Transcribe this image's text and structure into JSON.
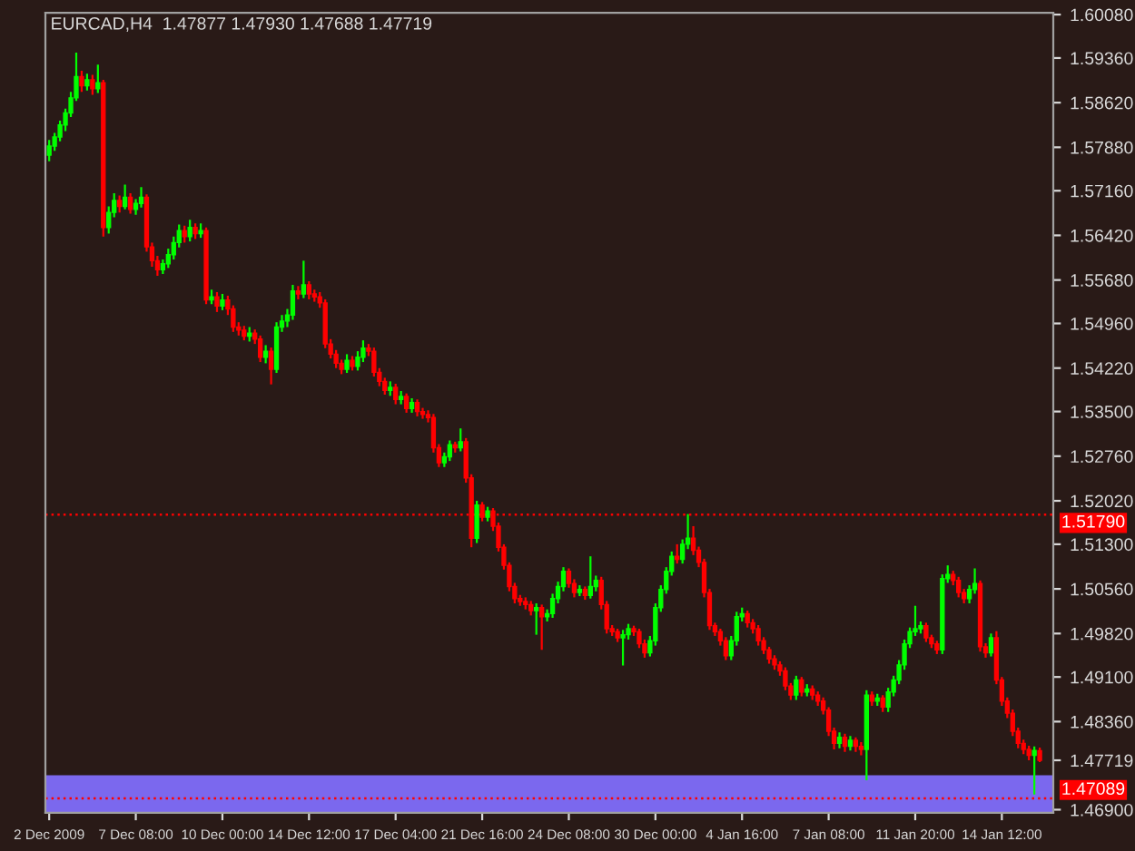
{
  "chart_data": {
    "type": "candlestick",
    "title": "EURCAD,H4  1.47877 1.47930 1.47688 1.47719",
    "categories": [
      "2 Dec 2009",
      null,
      null,
      null,
      null,
      null,
      null,
      null,
      null,
      null,
      null,
      null,
      null,
      null,
      null,
      null,
      "7 Dec 08:00",
      null,
      null,
      null,
      null,
      null,
      null,
      null,
      null,
      null,
      null,
      null,
      null,
      null,
      null,
      null,
      "10 Dec 00:00",
      null,
      null,
      null,
      null,
      null,
      null,
      null,
      null,
      null,
      null,
      null,
      null,
      null,
      null,
      null,
      "14 Dec 12:00",
      null,
      null,
      null,
      null,
      null,
      null,
      null,
      null,
      null,
      null,
      null,
      null,
      null,
      null,
      null,
      "17 Dec 04:00",
      null,
      null,
      null,
      null,
      null,
      null,
      null,
      null,
      null,
      null,
      null,
      null,
      null,
      null,
      null,
      "21 Dec 16:00",
      null,
      null,
      null,
      null,
      null,
      null,
      null,
      null,
      null,
      null,
      null,
      null,
      null,
      null,
      null,
      "24 Dec 08:00",
      null,
      null,
      null,
      null,
      null,
      null,
      null,
      null,
      null,
      null,
      null,
      null,
      null,
      null,
      null,
      "30 Dec 00:00",
      null,
      null,
      null,
      null,
      null,
      null,
      null,
      null,
      null,
      null,
      null,
      null,
      null,
      null,
      null,
      "4 Jan 16:00",
      null,
      null,
      null,
      null,
      null,
      null,
      null,
      null,
      null,
      null,
      null,
      null,
      null,
      null,
      null,
      "7 Jan 08:00",
      null,
      null,
      null,
      null,
      null,
      null,
      null,
      null,
      null,
      null,
      null,
      null,
      null,
      null,
      null,
      "11 Jan 20:00",
      null,
      null,
      null,
      null,
      null,
      null,
      null,
      null,
      null,
      null,
      null,
      null,
      null,
      null,
      null,
      "14 Jan 12:00",
      null,
      null,
      null,
      null,
      null,
      null,
      null
    ],
    "colors": [
      "#00ff00",
      "#00ff00",
      "#00ff00",
      "#00ff00",
      "#00ff00",
      "#00ff00",
      "#ff0000",
      "#00ff00",
      "#ff0000",
      "#00ff00",
      "#ff0000",
      "#00ff00",
      "#00ff00",
      "#ff0000",
      "#00ff00",
      "#ff0000",
      "#00ff00",
      "#00ff00",
      "#ff0000",
      "#ff0000",
      "#ff0000",
      "#00ff00",
      "#00ff00",
      "#00ff00",
      "#00ff00",
      "#ff0000",
      "#00ff00",
      "#ff0000",
      "#00ff00",
      "#ff0000",
      "#00ff00",
      "#ff0000",
      "#00ff00",
      "#ff0000",
      "#ff0000",
      "#ff0000",
      "#ff0000",
      "#00ff00",
      "#ff0000",
      "#ff0000",
      "#00ff00",
      "#ff0000",
      "#00ff00",
      "#00ff00",
      "#00ff00",
      "#00ff00",
      "#ff0000",
      "#00ff00",
      "#ff0000",
      "#ff0000",
      "#ff0000",
      "#ff0000",
      "#ff0000",
      "#ff0000",
      "#ff0000",
      "#00ff00",
      "#ff0000",
      "#00ff00",
      "#00ff00",
      "#ff0000",
      "#ff0000",
      "#ff0000",
      "#ff0000",
      "#00ff00",
      "#ff0000",
      "#00ff00",
      "#ff0000",
      "#00ff00",
      "#ff0000",
      "#ff0000",
      "#ff0000",
      "#ff0000",
      "#ff0000",
      "#00ff00",
      "#00ff00",
      "#ff0000",
      "#00ff00",
      "#ff0000",
      "#ff0000",
      "#00ff00",
      "#ff0000",
      "#00ff00",
      "#ff0000",
      "#ff0000",
      "#ff0000",
      "#ff0000",
      "#ff0000",
      "#ff0000",
      "#ff0000",
      "#ff0000",
      "#00ff00",
      "#ff0000",
      "#00ff00",
      "#00ff00",
      "#00ff00",
      "#00ff00",
      "#ff0000",
      "#ff0000",
      "#00ff00",
      "#ff0000",
      "#00ff00",
      "#00ff00",
      "#ff0000",
      "#ff0000",
      "#ff0000",
      "#ff0000",
      "#00ff00",
      "#00ff00",
      "#ff0000",
      "#ff0000",
      "#ff0000",
      "#00ff00",
      "#00ff00",
      "#00ff00",
      "#00ff00",
      "#00ff00",
      "#ff0000",
      "#00ff00",
      "#00ff00",
      "#ff0000",
      "#ff0000",
      "#ff0000",
      "#ff0000",
      "#ff0000",
      "#ff0000",
      "#ff0000",
      "#00ff00",
      "#00ff00",
      "#00ff00",
      "#ff0000",
      "#ff0000",
      "#ff0000",
      "#ff0000",
      "#ff0000",
      "#ff0000",
      "#ff0000",
      "#ff0000",
      "#ff0000",
      "#00ff00",
      "#ff0000",
      "#00ff00",
      "#ff0000",
      "#ff0000",
      "#ff0000",
      "#ff0000",
      "#ff0000",
      "#00ff00",
      "#ff0000",
      "#00ff00",
      "#ff0000",
      "#ff0000",
      "#00ff00",
      "#ff0000",
      "#00ff00",
      "#ff0000",
      "#00ff00",
      "#00ff00",
      "#00ff00",
      "#00ff00",
      "#00ff00",
      "#00ff00",
      "#00ff00",
      "#ff0000",
      "#ff0000",
      "#ff0000",
      "#00ff00",
      "#00ff00",
      "#ff0000",
      "#ff0000",
      "#ff0000",
      "#00ff00",
      "#00ff00",
      "#ff0000",
      "#ff0000",
      "#00ff00",
      "#ff0000",
      "#ff0000",
      "#ff0000",
      "#ff0000",
      "#ff0000",
      "#ff0000",
      "#ff0000",
      "#00ff00",
      "#ff0000"
    ],
    "ohlc": [
      [
        1.5775,
        1.58,
        1.5765,
        1.579
      ],
      [
        1.579,
        1.5812,
        1.5782,
        1.5805
      ],
      [
        1.5805,
        1.5832,
        1.5798,
        1.5825
      ],
      [
        1.5825,
        1.5852,
        1.5815,
        1.5845
      ],
      [
        1.5845,
        1.588,
        1.5838,
        1.587
      ],
      [
        1.587,
        1.5945,
        1.5865,
        1.5905
      ],
      [
        1.5905,
        1.5915,
        1.588,
        1.589
      ],
      [
        1.589,
        1.591,
        1.5882,
        1.59
      ],
      [
        1.59,
        1.5908,
        1.5875,
        1.5885
      ],
      [
        1.5885,
        1.5925,
        1.5878,
        1.5895
      ],
      [
        1.5895,
        1.59,
        1.564,
        1.5655
      ],
      [
        1.5655,
        1.569,
        1.5645,
        1.568
      ],
      [
        1.568,
        1.5712,
        1.5672,
        1.57
      ],
      [
        1.57,
        1.5708,
        1.568,
        1.569
      ],
      [
        1.569,
        1.5726,
        1.5685,
        1.5705
      ],
      [
        1.5705,
        1.5712,
        1.5678,
        1.5685
      ],
      [
        1.5685,
        1.5702,
        1.5676,
        1.5695
      ],
      [
        1.5695,
        1.5722,
        1.5688,
        1.5705
      ],
      [
        1.5705,
        1.571,
        1.5615,
        1.5623
      ],
      [
        1.5623,
        1.563,
        1.559,
        1.56
      ],
      [
        1.56,
        1.5608,
        1.5575,
        1.5585
      ],
      [
        1.5585,
        1.5602,
        1.5578,
        1.5595
      ],
      [
        1.5595,
        1.562,
        1.5588,
        1.561
      ],
      [
        1.561,
        1.564,
        1.5602,
        1.563
      ],
      [
        1.563,
        1.566,
        1.5622,
        1.565
      ],
      [
        1.565,
        1.5658,
        1.563,
        1.564
      ],
      [
        1.564,
        1.5668,
        1.5632,
        1.5655
      ],
      [
        1.5655,
        1.5662,
        1.5636,
        1.5645
      ],
      [
        1.5645,
        1.5662,
        1.5638,
        1.565
      ],
      [
        1.565,
        1.5655,
        1.5528,
        1.5535
      ],
      [
        1.5535,
        1.5552,
        1.5528,
        1.554
      ],
      [
        1.554,
        1.5548,
        1.5515,
        1.5525
      ],
      [
        1.5525,
        1.5545,
        1.5518,
        1.5535
      ],
      [
        1.5535,
        1.5542,
        1.551,
        1.552
      ],
      [
        1.552,
        1.5526,
        1.5482,
        1.549
      ],
      [
        1.549,
        1.5498,
        1.5476,
        1.5485
      ],
      [
        1.5485,
        1.5492,
        1.5468,
        1.5475
      ],
      [
        1.5475,
        1.549,
        1.5466,
        1.548
      ],
      [
        1.548,
        1.5486,
        1.5462,
        1.547
      ],
      [
        1.547,
        1.5476,
        1.5432,
        1.544
      ],
      [
        1.544,
        1.546,
        1.543,
        1.545
      ],
      [
        1.545,
        1.5456,
        1.5395,
        1.542
      ],
      [
        1.542,
        1.5498,
        1.5414,
        1.549
      ],
      [
        1.549,
        1.551,
        1.5482,
        1.55
      ],
      [
        1.55,
        1.552,
        1.549,
        1.551
      ],
      [
        1.551,
        1.556,
        1.5502,
        1.555
      ],
      [
        1.555,
        1.5558,
        1.5536,
        1.5545
      ],
      [
        1.5545,
        1.56,
        1.5538,
        1.556
      ],
      [
        1.556,
        1.5566,
        1.5536,
        1.5545
      ],
      [
        1.5545,
        1.5552,
        1.5532,
        1.554
      ],
      [
        1.554,
        1.5548,
        1.5522,
        1.553
      ],
      [
        1.553,
        1.5536,
        1.5455,
        1.5462
      ],
      [
        1.5462,
        1.547,
        1.5438,
        1.5445
      ],
      [
        1.5445,
        1.5452,
        1.5422,
        1.543
      ],
      [
        1.543,
        1.5436,
        1.5412,
        1.542
      ],
      [
        1.542,
        1.5445,
        1.5414,
        1.5435
      ],
      [
        1.5435,
        1.5442,
        1.5418,
        1.5425
      ],
      [
        1.5425,
        1.545,
        1.5418,
        1.544
      ],
      [
        1.544,
        1.5468,
        1.5432,
        1.5455
      ],
      [
        1.5455,
        1.5462,
        1.5442,
        1.545
      ],
      [
        1.545,
        1.5456,
        1.5408,
        1.5415
      ],
      [
        1.5415,
        1.5422,
        1.5392,
        1.54
      ],
      [
        1.54,
        1.5406,
        1.5378,
        1.5385
      ],
      [
        1.5385,
        1.54,
        1.5376,
        1.539
      ],
      [
        1.539,
        1.5396,
        1.5362,
        1.537
      ],
      [
        1.537,
        1.5384,
        1.5362,
        1.5375
      ],
      [
        1.5375,
        1.538,
        1.5348,
        1.5355
      ],
      [
        1.5355,
        1.5372,
        1.5348,
        1.5365
      ],
      [
        1.5365,
        1.537,
        1.5342,
        1.535
      ],
      [
        1.535,
        1.5356,
        1.5338,
        1.5345
      ],
      [
        1.5345,
        1.5352,
        1.5332,
        1.534
      ],
      [
        1.534,
        1.5346,
        1.5282,
        1.529
      ],
      [
        1.529,
        1.5296,
        1.5258,
        1.5265
      ],
      [
        1.5265,
        1.5282,
        1.5258,
        1.5275
      ],
      [
        1.5275,
        1.5302,
        1.5268,
        1.5295
      ],
      [
        1.5295,
        1.53,
        1.5282,
        1.529
      ],
      [
        1.529,
        1.5322,
        1.5284,
        1.53
      ],
      [
        1.53,
        1.5306,
        1.5232,
        1.524
      ],
      [
        1.524,
        1.5246,
        1.5125,
        1.514
      ],
      [
        1.514,
        1.5202,
        1.5132,
        1.5195
      ],
      [
        1.5195,
        1.52,
        1.5168,
        1.5175
      ],
      [
        1.5175,
        1.5192,
        1.5168,
        1.5185
      ],
      [
        1.5185,
        1.519,
        1.5152,
        1.516
      ],
      [
        1.516,
        1.5166,
        1.5118,
        1.5125
      ],
      [
        1.5125,
        1.513,
        1.5088,
        1.5095
      ],
      [
        1.5095,
        1.51,
        1.5052,
        1.506
      ],
      [
        1.506,
        1.5066,
        1.5032,
        1.504
      ],
      [
        1.504,
        1.5046,
        1.5028,
        1.5035
      ],
      [
        1.5035,
        1.5042,
        1.5022,
        1.503
      ],
      [
        1.503,
        1.5036,
        1.5012,
        1.502
      ],
      [
        1.502,
        1.5032,
        1.498,
        1.5025
      ],
      [
        1.5025,
        1.503,
        1.4955,
        1.501
      ],
      [
        1.501,
        1.5022,
        1.5002,
        1.5015
      ],
      [
        1.5015,
        1.5048,
        1.5008,
        1.504
      ],
      [
        1.504,
        1.5068,
        1.5032,
        1.506
      ],
      [
        1.506,
        1.5092,
        1.5052,
        1.5085
      ],
      [
        1.5085,
        1.509,
        1.5058,
        1.5065
      ],
      [
        1.5065,
        1.5072,
        1.5042,
        1.505
      ],
      [
        1.505,
        1.5062,
        1.5044,
        1.5055
      ],
      [
        1.5055,
        1.506,
        1.5038,
        1.5045
      ],
      [
        1.5045,
        1.511,
        1.504,
        1.506
      ],
      [
        1.506,
        1.5078,
        1.5052,
        1.507
      ],
      [
        1.507,
        1.5076,
        1.5022,
        1.503
      ],
      [
        1.503,
        1.5036,
        1.4982,
        1.499
      ],
      [
        1.499,
        1.4996,
        1.4978,
        1.4985
      ],
      [
        1.4985,
        1.499,
        1.4968,
        1.4975
      ],
      [
        1.4975,
        1.4988,
        1.4929,
        1.498
      ],
      [
        1.498,
        1.4998,
        1.4972,
        1.499
      ],
      [
        1.499,
        1.4995,
        1.4978,
        1.4985
      ],
      [
        1.4985,
        1.499,
        1.4958,
        1.4965
      ],
      [
        1.4965,
        1.4972,
        1.4942,
        1.495
      ],
      [
        1.495,
        1.4978,
        1.4944,
        1.497
      ],
      [
        1.497,
        1.5032,
        1.4962,
        1.5025
      ],
      [
        1.5025,
        1.5062,
        1.5018,
        1.5055
      ],
      [
        1.5055,
        1.5092,
        1.5048,
        1.5085
      ],
      [
        1.5085,
        1.5118,
        1.5078,
        1.511
      ],
      [
        1.511,
        1.513,
        1.5098,
        1.5105
      ],
      [
        1.5105,
        1.5138,
        1.5098,
        1.513
      ],
      [
        1.513,
        1.518,
        1.5122,
        1.514
      ],
      [
        1.514,
        1.516,
        1.5112,
        1.512
      ],
      [
        1.512,
        1.5126,
        1.5092,
        1.51
      ],
      [
        1.51,
        1.5106,
        1.5042,
        1.505
      ],
      [
        1.505,
        1.5056,
        1.4988,
        1.4995
      ],
      [
        1.4995,
        1.5,
        1.4978,
        1.4985
      ],
      [
        1.4985,
        1.499,
        1.4962,
        1.497
      ],
      [
        1.497,
        1.4976,
        1.4938,
        1.4945
      ],
      [
        1.4945,
        1.4978,
        1.4938,
        1.497
      ],
      [
        1.497,
        1.5018,
        1.4962,
        1.501
      ],
      [
        1.501,
        1.5025,
        1.5002,
        1.5015
      ],
      [
        1.5015,
        1.502,
        1.4992,
        1.5
      ],
      [
        1.5,
        1.5006,
        1.4982,
        1.499
      ],
      [
        1.499,
        1.4996,
        1.4962,
        1.497
      ],
      [
        1.497,
        1.4976,
        1.4948,
        1.4955
      ],
      [
        1.4955,
        1.496,
        1.4932,
        1.494
      ],
      [
        1.494,
        1.4946,
        1.4922,
        1.493
      ],
      [
        1.493,
        1.4936,
        1.4912,
        1.492
      ],
      [
        1.492,
        1.4926,
        1.4888,
        1.4895
      ],
      [
        1.4895,
        1.49,
        1.4872,
        1.488
      ],
      [
        1.488,
        1.4912,
        1.4872,
        1.4905
      ],
      [
        1.4905,
        1.491,
        1.4878,
        1.4885
      ],
      [
        1.4885,
        1.4898,
        1.4878,
        1.489
      ],
      [
        1.489,
        1.4896,
        1.4872,
        1.488
      ],
      [
        1.488,
        1.4886,
        1.4862,
        1.487
      ],
      [
        1.487,
        1.4876,
        1.4848,
        1.4855
      ],
      [
        1.4855,
        1.486,
        1.4812,
        1.482
      ],
      [
        1.482,
        1.4826,
        1.479,
        1.48
      ],
      [
        1.48,
        1.4818,
        1.4792,
        1.481
      ],
      [
        1.481,
        1.4816,
        1.4786,
        1.4795
      ],
      [
        1.4795,
        1.4812,
        1.4788,
        1.4805
      ],
      [
        1.4805,
        1.481,
        1.4786,
        1.4795
      ],
      [
        1.4795,
        1.4802,
        1.478,
        1.479
      ],
      [
        1.479,
        1.4888,
        1.4739,
        1.488
      ],
      [
        1.488,
        1.4886,
        1.4862,
        1.487
      ],
      [
        1.487,
        1.4882,
        1.4862,
        1.4875
      ],
      [
        1.4875,
        1.488,
        1.4852,
        1.486
      ],
      [
        1.486,
        1.4892,
        1.4852,
        1.4885
      ],
      [
        1.4885,
        1.4912,
        1.4878,
        1.4905
      ],
      [
        1.4905,
        1.4938,
        1.4898,
        1.493
      ],
      [
        1.493,
        1.4972,
        1.4922,
        1.4965
      ],
      [
        1.4965,
        1.4992,
        1.4958,
        1.4985
      ],
      [
        1.4985,
        1.5028,
        1.4978,
        1.499
      ],
      [
        1.499,
        1.5002,
        1.4982,
        1.4995
      ],
      [
        1.4995,
        1.5,
        1.4968,
        1.4975
      ],
      [
        1.4975,
        1.498,
        1.4958,
        1.4965
      ],
      [
        1.4965,
        1.497,
        1.4948,
        1.4955
      ],
      [
        1.4955,
        1.508,
        1.4948,
        1.5073
      ],
      [
        1.5073,
        1.5095,
        1.5066,
        1.508
      ],
      [
        1.508,
        1.5086,
        1.5062,
        1.507
      ],
      [
        1.507,
        1.5076,
        1.5042,
        1.505
      ],
      [
        1.505,
        1.5056,
        1.5032,
        1.504
      ],
      [
        1.504,
        1.5062,
        1.5032,
        1.5055
      ],
      [
        1.5055,
        1.509,
        1.5048,
        1.5065
      ],
      [
        1.5065,
        1.507,
        1.4952,
        1.496
      ],
      [
        1.496,
        1.4966,
        1.4942,
        1.495
      ],
      [
        1.495,
        1.4982,
        1.4944,
        1.4975
      ],
      [
        1.4975,
        1.4986,
        1.4898,
        1.4905
      ],
      [
        1.4905,
        1.491,
        1.4862,
        1.487
      ],
      [
        1.487,
        1.4876,
        1.4842,
        1.485
      ],
      [
        1.485,
        1.4856,
        1.4812,
        1.482
      ],
      [
        1.482,
        1.4826,
        1.4792,
        1.48
      ],
      [
        1.48,
        1.4806,
        1.4782,
        1.479
      ],
      [
        1.479,
        1.4796,
        1.4772,
        1.478
      ],
      [
        1.478,
        1.4795,
        1.4715,
        1.4788
      ],
      [
        1.47877,
        1.4793,
        1.47688,
        1.47719
      ]
    ],
    "ylim": [
      1.4685,
      1.6011
    ],
    "yticks": [
      {
        "value": 1.6008,
        "label": "1.60080"
      },
      {
        "value": 1.5936,
        "label": "1.59360"
      },
      {
        "value": 1.5862,
        "label": "1.58620"
      },
      {
        "value": 1.5788,
        "label": "1.57880"
      },
      {
        "value": 1.5716,
        "label": "1.57160"
      },
      {
        "value": 1.5642,
        "label": "1.56420"
      },
      {
        "value": 1.5568,
        "label": "1.55680"
      },
      {
        "value": 1.5496,
        "label": "1.54960"
      },
      {
        "value": 1.5422,
        "label": "1.54220"
      },
      {
        "value": 1.535,
        "label": "1.53500"
      },
      {
        "value": 1.5276,
        "label": "1.52760"
      },
      {
        "value": 1.5202,
        "label": "1.52020"
      },
      {
        "value": 1.513,
        "label": "1.51300"
      },
      {
        "value": 1.5056,
        "label": "1.50560"
      },
      {
        "value": 1.4982,
        "label": "1.49820"
      },
      {
        "value": 1.491,
        "label": "1.49100"
      },
      {
        "value": 1.4836,
        "label": "1.48360"
      },
      {
        "value": 1.47719,
        "label": "1.47719"
      },
      {
        "value": 1.469,
        "label": "1.46900"
      }
    ],
    "ref_lines": [
      {
        "axis": "y",
        "value": 1.5179,
        "label": "1.51790",
        "color": "#ff0000",
        "line_style": "dotted"
      },
      {
        "axis": "y",
        "value": 1.47089,
        "label": "1.47089",
        "color": "#ff0000",
        "line_style": "dotted"
      }
    ],
    "bands": [
      {
        "axis": "y",
        "from": 1.4685,
        "to": 1.4747,
        "color": "#7b68ee"
      }
    ],
    "grid": false
  }
}
